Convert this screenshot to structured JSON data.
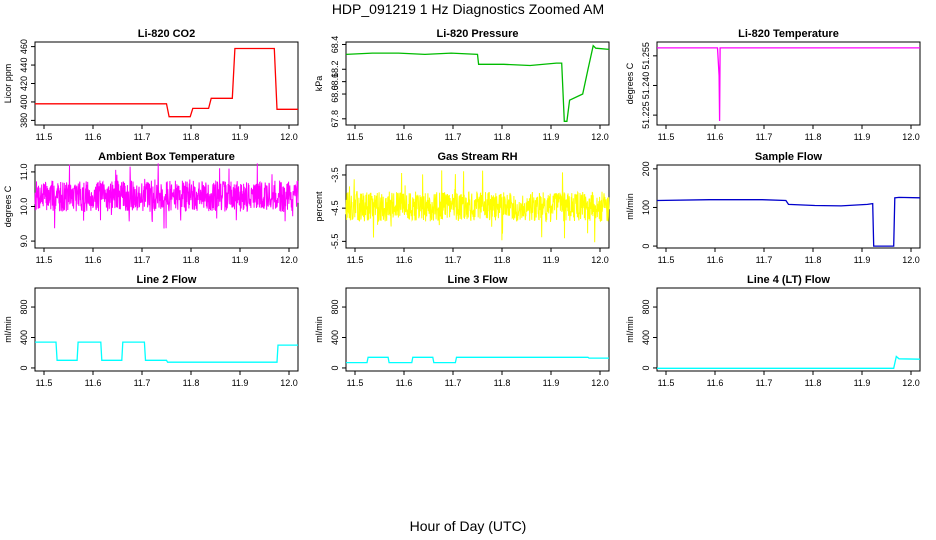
{
  "title": "HDP_091219  1 Hz Diagnostics Zoomed AM",
  "x_axis_label": "Hour of Day (UTC)",
  "chart_data": [
    {
      "type": "line",
      "title": "Li-820 CO2",
      "ylabel": "Licor ppm",
      "color": "#ff0000",
      "xlim": [
        11.5,
        12.0
      ],
      "ylim": [
        375,
        465
      ],
      "xticks": [
        "11.5",
        "11.6",
        "11.7",
        "11.8",
        "11.9",
        "12.0"
      ],
      "yticks": [
        380,
        400,
        420,
        440,
        460
      ],
      "series": [
        {
          "x": [
            11.5,
            11.6,
            11.7,
            11.75,
            11.755,
            11.795,
            11.8,
            11.83,
            11.835,
            11.875,
            11.88,
            11.955,
            11.96,
            12.0
          ],
          "y": [
            398,
            398,
            398,
            398,
            384,
            384,
            393,
            393,
            404,
            404,
            458,
            458,
            392,
            392
          ]
        }
      ]
    },
    {
      "type": "line",
      "title": "Li-820 Pressure",
      "ylabel": "kPa",
      "color": "#00bb00",
      "xlim": [
        11.5,
        12.0
      ],
      "ylim": [
        67.75,
        68.42
      ],
      "xticks": [
        "11.5",
        "11.6",
        "11.7",
        "11.8",
        "11.9",
        "12.0"
      ],
      "yticks": [
        "67.8",
        "68.0",
        "68.1",
        "68.2",
        "68.4"
      ],
      "series": [
        {
          "x": [
            11.5,
            11.55,
            11.6,
            11.65,
            11.7,
            11.75,
            11.752,
            11.8,
            11.85,
            11.9,
            11.91,
            11.915,
            11.92,
            11.925,
            11.95,
            11.96,
            11.97,
            11.975,
            12.0
          ],
          "y": [
            68.32,
            68.33,
            68.33,
            68.32,
            68.33,
            68.32,
            68.24,
            68.24,
            68.23,
            68.25,
            68.25,
            67.78,
            67.78,
            67.95,
            68.0,
            68.2,
            68.39,
            68.37,
            68.36
          ]
        }
      ]
    },
    {
      "type": "line",
      "title": "Li-820 Temperature",
      "ylabel": "degrees C",
      "color": "#ff00ff",
      "xlim": [
        11.5,
        12.0
      ],
      "ylim": [
        51.22,
        51.262
      ],
      "xticks": [
        "11.5",
        "11.6",
        "11.7",
        "11.8",
        "11.9",
        "12.0"
      ],
      "yticks": [
        "51.225",
        "51.240",
        "51.255"
      ],
      "series": [
        {
          "x": [
            11.5,
            11.615,
            11.618,
            11.619,
            11.62,
            11.625,
            12.0
          ],
          "y": [
            51.259,
            51.259,
            51.245,
            51.222,
            51.259,
            51.259,
            51.259
          ]
        }
      ]
    },
    {
      "type": "line",
      "title": "Ambient Box Temperature",
      "ylabel": "degrees C",
      "color": "#ff00ff",
      "xlim": [
        11.5,
        12.0
      ],
      "ylim": [
        8.8,
        11.2
      ],
      "xticks": [
        "11.5",
        "11.6",
        "11.7",
        "11.8",
        "11.9",
        "12.0"
      ],
      "yticks": [
        "9.0",
        "10.0",
        "11.0"
      ],
      "noise": {
        "center": 10.3,
        "amplitude": 0.45,
        "spike_amplitude": 0.95,
        "count": 900,
        "seed": 7
      },
      "series": []
    },
    {
      "type": "line",
      "title": "Gas Stream RH",
      "ylabel": "percent",
      "color": "#ffff00",
      "xlim": [
        11.5,
        12.0
      ],
      "ylim": [
        -5.7,
        -3.2
      ],
      "xticks": [
        "11.5",
        "11.6",
        "11.7",
        "11.8",
        "11.9",
        "12.0"
      ],
      "yticks": [
        "-3.5",
        "-4.5",
        "-5.5"
      ],
      "noise": {
        "center": -4.45,
        "amplitude": 0.45,
        "spike_amplitude": 1.1,
        "count": 900,
        "seed": 13
      },
      "series": []
    },
    {
      "type": "line",
      "title": "Sample Flow",
      "ylabel": "ml/min",
      "color": "#0000cc",
      "xlim": [
        11.5,
        12.0
      ],
      "ylim": [
        -5,
        210
      ],
      "xticks": [
        "11.5",
        "11.6",
        "11.7",
        "11.8",
        "11.9",
        "12.0"
      ],
      "yticks": [
        0,
        100,
        200
      ],
      "series": [
        {
          "x": [
            11.5,
            11.6,
            11.7,
            11.745,
            11.75,
            11.8,
            11.85,
            11.9,
            11.91,
            11.912,
            11.95,
            11.952,
            11.96,
            12.0
          ],
          "y": [
            118,
            120,
            120,
            118,
            108,
            105,
            104,
            108,
            110,
            0,
            0,
            125,
            126,
            125
          ]
        }
      ]
    },
    {
      "type": "line",
      "title": "Line 2 Flow",
      "ylabel": "ml/min",
      "color": "#00ffff",
      "xlim": [
        11.5,
        12.0
      ],
      "ylim": [
        -40,
        1050
      ],
      "xticks": [
        "11.5",
        "11.6",
        "11.7",
        "11.8",
        "11.9",
        "12.0"
      ],
      "yticks": [
        0,
        400,
        800
      ],
      "series": [
        {
          "x": [
            11.5,
            11.54,
            11.542,
            11.58,
            11.582,
            11.625,
            11.627,
            11.665,
            11.667,
            11.708,
            11.71,
            11.75,
            11.752,
            11.96,
            11.962,
            12.0
          ],
          "y": [
            340,
            340,
            100,
            100,
            340,
            340,
            100,
            100,
            340,
            340,
            100,
            100,
            75,
            75,
            300,
            300
          ]
        }
      ]
    },
    {
      "type": "line",
      "title": "Line 3 Flow",
      "ylabel": "ml/min",
      "color": "#00ffff",
      "xlim": [
        11.5,
        12.0
      ],
      "ylim": [
        -40,
        1050
      ],
      "xticks": [
        "11.5",
        "11.6",
        "11.7",
        "11.8",
        "11.9",
        "12.0"
      ],
      "yticks": [
        0,
        400,
        800
      ],
      "series": [
        {
          "x": [
            11.5,
            11.54,
            11.542,
            11.58,
            11.582,
            11.625,
            11.627,
            11.665,
            11.667,
            11.708,
            11.71,
            11.96,
            11.962,
            12.0
          ],
          "y": [
            70,
            70,
            140,
            140,
            70,
            70,
            140,
            140,
            70,
            70,
            140,
            140,
            130,
            130
          ]
        }
      ]
    },
    {
      "type": "line",
      "title": "Line 4 (LT) Flow",
      "ylabel": "ml/min",
      "color": "#00ffff",
      "xlim": [
        11.5,
        12.0
      ],
      "ylim": [
        -40,
        1050
      ],
      "xticks": [
        "11.5",
        "11.6",
        "11.7",
        "11.8",
        "11.9",
        "12.0"
      ],
      "yticks": [
        0,
        400,
        800
      ],
      "series": [
        {
          "x": [
            11.5,
            11.95,
            11.955,
            11.96,
            12.0
          ],
          "y": [
            -5,
            -5,
            150,
            120,
            115
          ]
        }
      ]
    }
  ]
}
